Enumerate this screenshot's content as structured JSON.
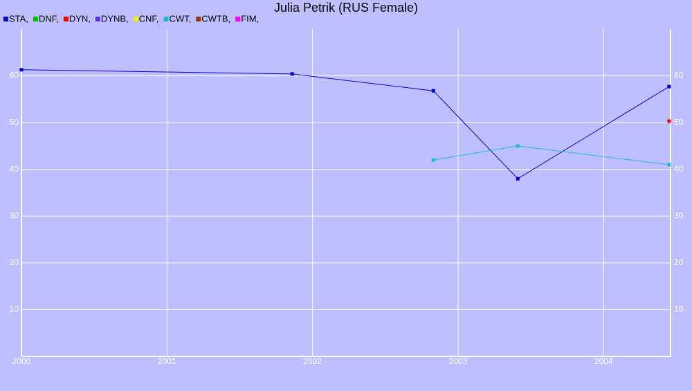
{
  "chart_data": {
    "type": "line",
    "title": "Julia Petrik (RUS Female)",
    "xlim": [
      2000,
      2004.46
    ],
    "xticks": [
      2000,
      2001,
      2002,
      2003,
      2004
    ],
    "ylim": [
      0,
      70
    ],
    "yticks": [
      10,
      20,
      30,
      40,
      50,
      60
    ],
    "grid": true,
    "series": [
      {
        "name": "STA,",
        "color": "#0000cc",
        "x": [
          2000.0,
          2001.86,
          2002.83,
          2003.41,
          2004.45
        ],
        "values": [
          61.3,
          60.4,
          56.8,
          38.0,
          57.7
        ]
      },
      {
        "name": "DNF,",
        "color": "#00c000",
        "x": [],
        "values": []
      },
      {
        "name": "DYN,",
        "color": "#ee0000",
        "x": [
          2004.45
        ],
        "values": [
          50.3
        ]
      },
      {
        "name": "DYNB,",
        "color": "#6633dd",
        "x": [],
        "values": []
      },
      {
        "name": "CNF,",
        "color": "#eeee00",
        "x": [],
        "values": []
      },
      {
        "name": "CWT,",
        "color": "#22bbcc",
        "x": [
          2002.83,
          2003.41,
          2004.45
        ],
        "values": [
          42.0,
          45.0,
          41.0
        ]
      },
      {
        "name": "CWTB,",
        "color": "#993300",
        "x": [],
        "values": []
      },
      {
        "name": "FIM,",
        "color": "#ff00ff",
        "x": [],
        "values": []
      }
    ]
  }
}
